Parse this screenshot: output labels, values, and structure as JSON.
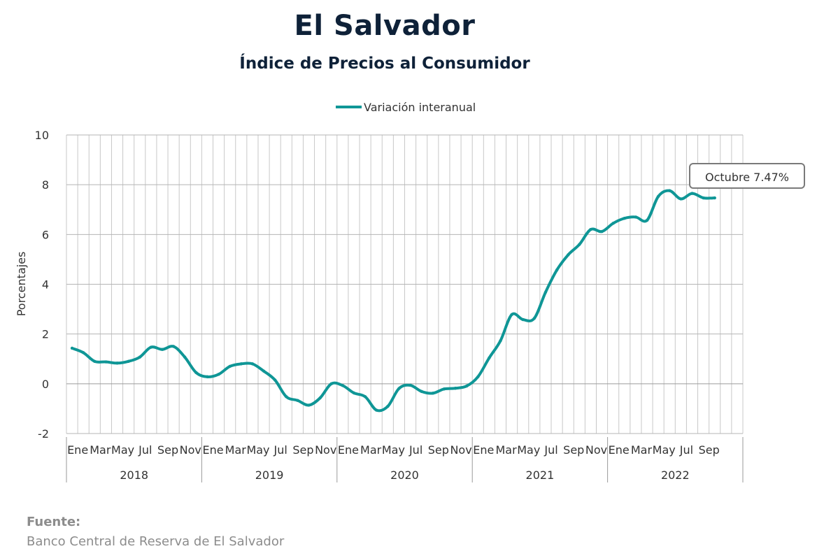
{
  "title": "El Salvador",
  "subtitle": "Índice de Precios al Consumidor",
  "source": {
    "label": "Fuente:",
    "text": "Banco Central de Reserva de El Salvador"
  },
  "colors": {
    "line": "#0f9696",
    "negative_tick": "#e00000",
    "title": "#0e2138",
    "grid": "#c8c8c8"
  },
  "chart_data": {
    "type": "line",
    "ylabel": "Porcentajes",
    "ylim": [
      -2,
      10
    ],
    "yticks": [
      "-2",
      "0",
      "2",
      "4",
      "6",
      "8",
      "10"
    ],
    "grid": true,
    "legend": {
      "position": "top",
      "entries": [
        "Variación interanual"
      ]
    },
    "month_tick_labels": [
      "Ene",
      "Mar",
      "May",
      "Jul",
      "Sep",
      "Nov"
    ],
    "years": [
      "2018",
      "2019",
      "2020",
      "2021",
      "2022"
    ],
    "series": [
      {
        "name": "Variación interanual",
        "x": [
          "2018-01",
          "2018-02",
          "2018-03",
          "2018-04",
          "2018-05",
          "2018-06",
          "2018-07",
          "2018-08",
          "2018-09",
          "2018-10",
          "2018-11",
          "2018-12",
          "2019-01",
          "2019-02",
          "2019-03",
          "2019-04",
          "2019-05",
          "2019-06",
          "2019-07",
          "2019-08",
          "2019-09",
          "2019-10",
          "2019-11",
          "2019-12",
          "2020-01",
          "2020-02",
          "2020-03",
          "2020-04",
          "2020-05",
          "2020-06",
          "2020-07",
          "2020-08",
          "2020-09",
          "2020-10",
          "2020-11",
          "2020-12",
          "2021-01",
          "2021-02",
          "2021-03",
          "2021-04",
          "2021-05",
          "2021-06",
          "2021-07",
          "2021-08",
          "2021-09",
          "2021-10",
          "2021-11",
          "2021-12",
          "2022-01",
          "2022-02",
          "2022-03",
          "2022-04",
          "2022-05",
          "2022-06",
          "2022-07",
          "2022-08",
          "2022-09",
          "2022-10"
        ],
        "values": [
          1.43,
          1.25,
          0.9,
          0.88,
          0.83,
          0.9,
          1.07,
          1.47,
          1.38,
          1.5,
          1.07,
          0.45,
          0.28,
          0.38,
          0.7,
          0.8,
          0.8,
          0.51,
          0.15,
          -0.52,
          -0.67,
          -0.86,
          -0.57,
          0.0,
          -0.07,
          -0.37,
          -0.52,
          -1.06,
          -0.91,
          -0.19,
          -0.06,
          -0.31,
          -0.38,
          -0.21,
          -0.18,
          -0.09,
          0.28,
          1.04,
          1.73,
          2.78,
          2.58,
          2.63,
          3.68,
          4.57,
          5.18,
          5.6,
          6.2,
          6.12,
          6.45,
          6.65,
          6.7,
          6.57,
          7.53,
          7.76,
          7.43,
          7.65,
          7.47,
          7.47
        ]
      }
    ],
    "annotation": {
      "text": "Octubre 7.47%",
      "x": "2022-10",
      "value": 7.47
    }
  }
}
